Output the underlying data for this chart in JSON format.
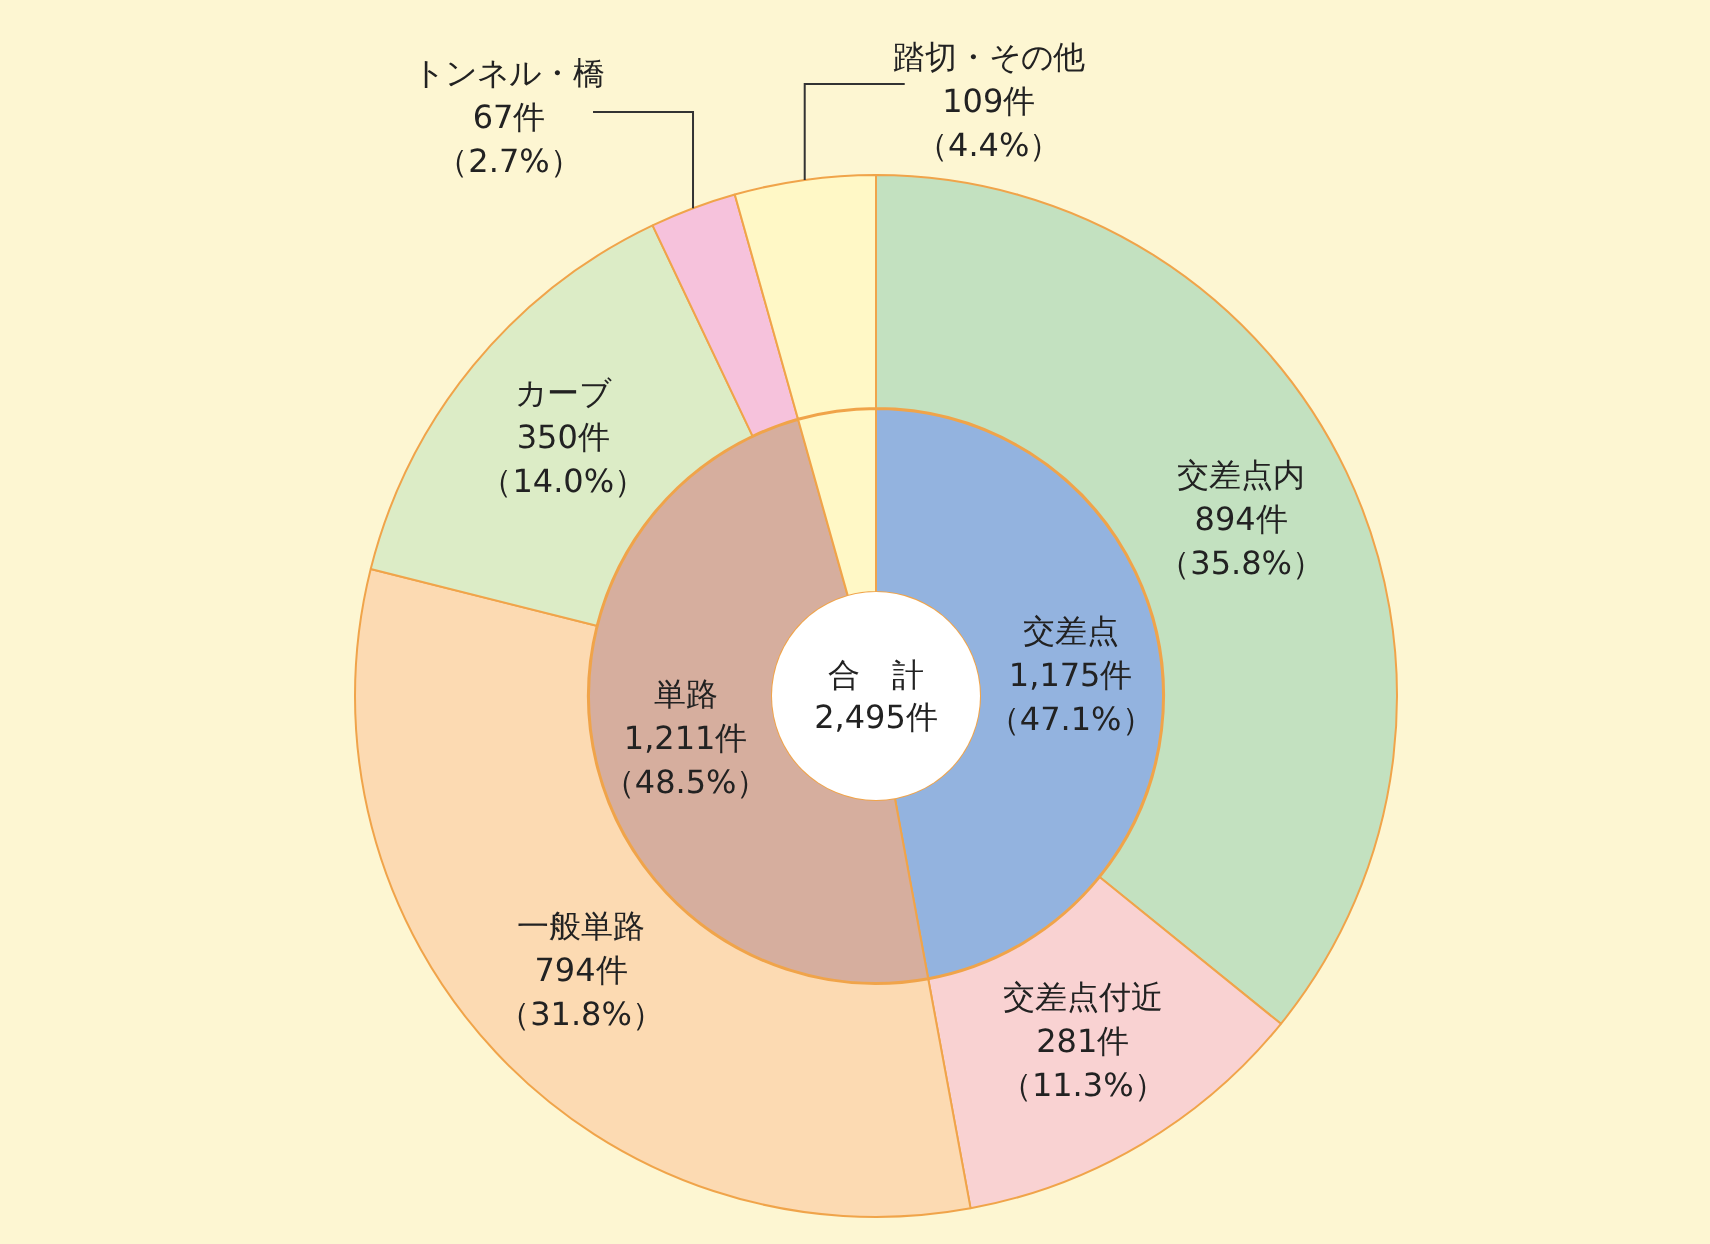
{
  "chart_data": [
    {
      "type": "donut",
      "categories": [
        "交差点",
        "単路",
        null
      ],
      "values": [
        1175,
        1211,
        109
      ],
      "colors": [
        "#93b3df",
        "#d6ae9e",
        "#fff8c6"
      ],
      "value_labels": [
        "1,175件（47.1%）",
        "1,211件（48.5%）",
        null
      ],
      "annotations": [
        "合　計\n2,495件"
      ],
      "legend": false
    },
    {
      "type": "donut",
      "categories": [
        "交差点内",
        "交差点付近",
        "一般単路",
        "カーブ",
        "トンネル・橋",
        "踏切・その他"
      ],
      "values": [
        894,
        281,
        794,
        350,
        67,
        109
      ],
      "colors": [
        "#c3e1c0",
        "#f9d2d2",
        "#fcdab2",
        "#dcecc6",
        "#f6c2dc",
        "#fff8c6"
      ],
      "value_labels": [
        "894件（35.8%）",
        "281件（11.3%）",
        "794件（31.8%）",
        "350件（14.0%）",
        "67件（2.7%）",
        "109件（4.4%）"
      ],
      "legend": false
    }
  ]
}
